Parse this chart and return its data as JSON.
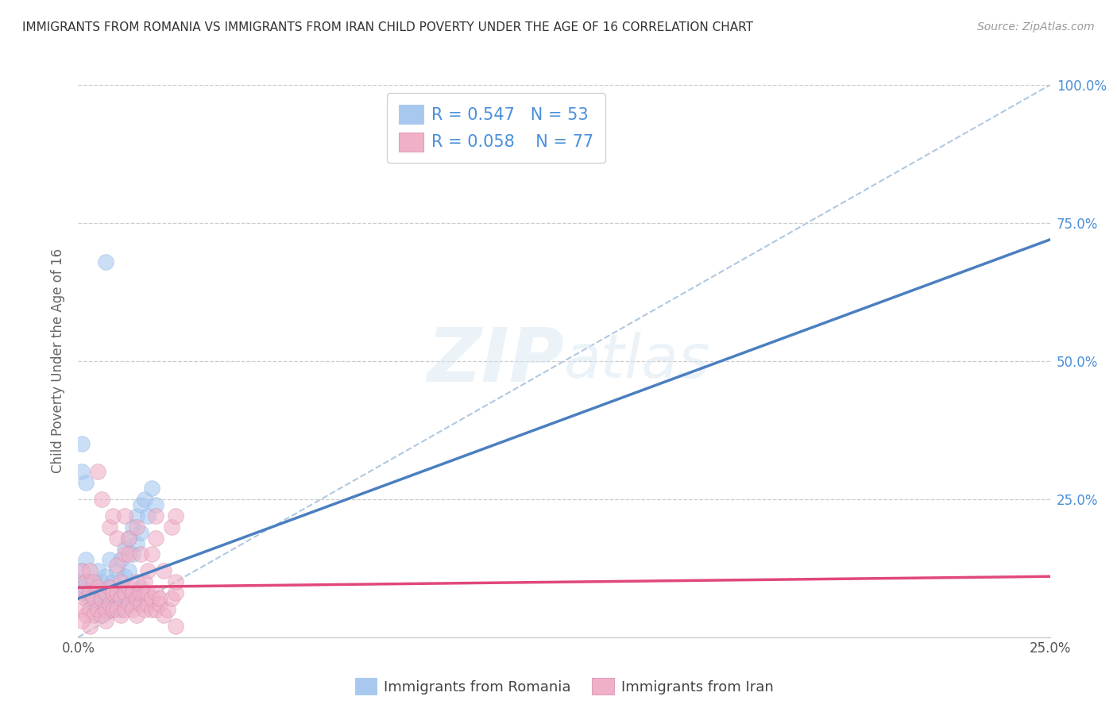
{
  "title": "IMMIGRANTS FROM ROMANIA VS IMMIGRANTS FROM IRAN CHILD POVERTY UNDER THE AGE OF 16 CORRELATION CHART",
  "source": "Source: ZipAtlas.com",
  "ylabel": "Child Poverty Under the Age of 16",
  "xlabel_romania": "Immigrants from Romania",
  "xlabel_iran": "Immigrants from Iran",
  "xlim": [
    0,
    0.25
  ],
  "ylim": [
    0,
    1.0
  ],
  "xticks": [
    0.0,
    0.25
  ],
  "xtick_labels": [
    "0.0%",
    "25.0%"
  ],
  "yticks": [
    0.0,
    0.25,
    0.5,
    0.75,
    1.0
  ],
  "ytick_labels_right": [
    "",
    "25.0%",
    "50.0%",
    "75.0%",
    "100.0%"
  ],
  "romania_color": "#a8c8f0",
  "iran_color": "#f0b0c8",
  "romania_line_color": "#4a7fc0",
  "iran_line_color": "#e04878",
  "R_romania": 0.547,
  "N_romania": 53,
  "R_iran": 0.058,
  "N_iran": 77,
  "background_color": "#ffffff",
  "grid_color": "#cccccc",
  "watermark_zip": "ZIP",
  "watermark_atlas": "atlas",
  "romania_scatter": [
    [
      0.001,
      0.09
    ],
    [
      0.001,
      0.12
    ],
    [
      0.002,
      0.08
    ],
    [
      0.002,
      0.14
    ],
    [
      0.003,
      0.07
    ],
    [
      0.003,
      0.1
    ],
    [
      0.004,
      0.06
    ],
    [
      0.004,
      0.09
    ],
    [
      0.005,
      0.08
    ],
    [
      0.005,
      0.12
    ],
    [
      0.006,
      0.1
    ],
    [
      0.006,
      0.07
    ],
    [
      0.007,
      0.11
    ],
    [
      0.007,
      0.06
    ],
    [
      0.008,
      0.09
    ],
    [
      0.008,
      0.14
    ],
    [
      0.009,
      0.1
    ],
    [
      0.009,
      0.07
    ],
    [
      0.01,
      0.12
    ],
    [
      0.01,
      0.08
    ],
    [
      0.011,
      0.14
    ],
    [
      0.011,
      0.09
    ],
    [
      0.012,
      0.16
    ],
    [
      0.012,
      0.11
    ],
    [
      0.013,
      0.18
    ],
    [
      0.013,
      0.12
    ],
    [
      0.014,
      0.2
    ],
    [
      0.014,
      0.15
    ],
    [
      0.015,
      0.22
    ],
    [
      0.015,
      0.17
    ],
    [
      0.016,
      0.24
    ],
    [
      0.016,
      0.19
    ],
    [
      0.017,
      0.25
    ],
    [
      0.018,
      0.22
    ],
    [
      0.019,
      0.27
    ],
    [
      0.02,
      0.24
    ],
    [
      0.001,
      0.3
    ],
    [
      0.001,
      0.35
    ],
    [
      0.002,
      0.28
    ],
    [
      0.005,
      0.05
    ],
    [
      0.006,
      0.04
    ],
    [
      0.007,
      0.06
    ],
    [
      0.008,
      0.05
    ],
    [
      0.009,
      0.06
    ],
    [
      0.01,
      0.07
    ],
    [
      0.011,
      0.05
    ],
    [
      0.012,
      0.07
    ],
    [
      0.013,
      0.08
    ],
    [
      0.014,
      0.06
    ],
    [
      0.015,
      0.08
    ],
    [
      0.016,
      0.09
    ],
    [
      0.007,
      0.68
    ],
    [
      0.0,
      0.1
    ]
  ],
  "iran_scatter": [
    [
      0.001,
      0.05
    ],
    [
      0.001,
      0.08
    ],
    [
      0.001,
      0.12
    ],
    [
      0.002,
      0.04
    ],
    [
      0.002,
      0.07
    ],
    [
      0.002,
      0.1
    ],
    [
      0.003,
      0.05
    ],
    [
      0.003,
      0.08
    ],
    [
      0.003,
      0.12
    ],
    [
      0.004,
      0.04
    ],
    [
      0.004,
      0.07
    ],
    [
      0.004,
      0.1
    ],
    [
      0.005,
      0.05
    ],
    [
      0.005,
      0.09
    ],
    [
      0.005,
      0.3
    ],
    [
      0.006,
      0.04
    ],
    [
      0.006,
      0.07
    ],
    [
      0.006,
      0.25
    ],
    [
      0.007,
      0.05
    ],
    [
      0.007,
      0.08
    ],
    [
      0.007,
      0.03
    ],
    [
      0.008,
      0.06
    ],
    [
      0.008,
      0.09
    ],
    [
      0.008,
      0.2
    ],
    [
      0.009,
      0.05
    ],
    [
      0.009,
      0.08
    ],
    [
      0.009,
      0.22
    ],
    [
      0.01,
      0.05
    ],
    [
      0.01,
      0.08
    ],
    [
      0.01,
      0.18
    ],
    [
      0.01,
      0.13
    ],
    [
      0.011,
      0.04
    ],
    [
      0.011,
      0.07
    ],
    [
      0.011,
      0.1
    ],
    [
      0.012,
      0.05
    ],
    [
      0.012,
      0.08
    ],
    [
      0.012,
      0.15
    ],
    [
      0.012,
      0.22
    ],
    [
      0.013,
      0.06
    ],
    [
      0.013,
      0.09
    ],
    [
      0.013,
      0.18
    ],
    [
      0.013,
      0.15
    ],
    [
      0.014,
      0.05
    ],
    [
      0.014,
      0.08
    ],
    [
      0.015,
      0.04
    ],
    [
      0.015,
      0.07
    ],
    [
      0.015,
      0.2
    ],
    [
      0.015,
      0.1
    ],
    [
      0.016,
      0.06
    ],
    [
      0.016,
      0.08
    ],
    [
      0.016,
      0.15
    ],
    [
      0.017,
      0.05
    ],
    [
      0.017,
      0.08
    ],
    [
      0.017,
      0.1
    ],
    [
      0.018,
      0.06
    ],
    [
      0.018,
      0.08
    ],
    [
      0.018,
      0.12
    ],
    [
      0.019,
      0.05
    ],
    [
      0.019,
      0.07
    ],
    [
      0.019,
      0.15
    ],
    [
      0.02,
      0.05
    ],
    [
      0.02,
      0.08
    ],
    [
      0.02,
      0.18
    ],
    [
      0.02,
      0.22
    ],
    [
      0.021,
      0.06
    ],
    [
      0.021,
      0.07
    ],
    [
      0.022,
      0.04
    ],
    [
      0.022,
      0.12
    ],
    [
      0.023,
      0.05
    ],
    [
      0.024,
      0.07
    ],
    [
      0.024,
      0.2
    ],
    [
      0.025,
      0.08
    ],
    [
      0.025,
      0.02
    ],
    [
      0.025,
      0.1
    ],
    [
      0.003,
      0.02
    ],
    [
      0.001,
      0.03
    ],
    [
      0.025,
      0.22
    ]
  ],
  "romania_trend_x": [
    0.0,
    0.25
  ],
  "romania_trend_y": [
    0.07,
    0.72
  ],
  "iran_trend_x": [
    0.0,
    0.25
  ],
  "iran_trend_y": [
    0.09,
    0.11
  ]
}
